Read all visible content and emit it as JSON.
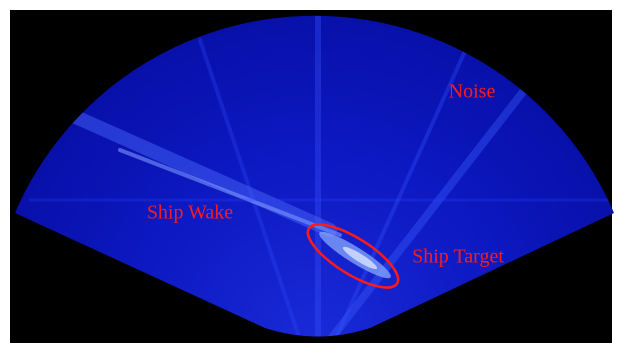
{
  "image": {
    "annotations": [
      {
        "label": "Noise"
      },
      {
        "label": "Ship Wake"
      },
      {
        "label": "Ship Target"
      }
    ]
  }
}
